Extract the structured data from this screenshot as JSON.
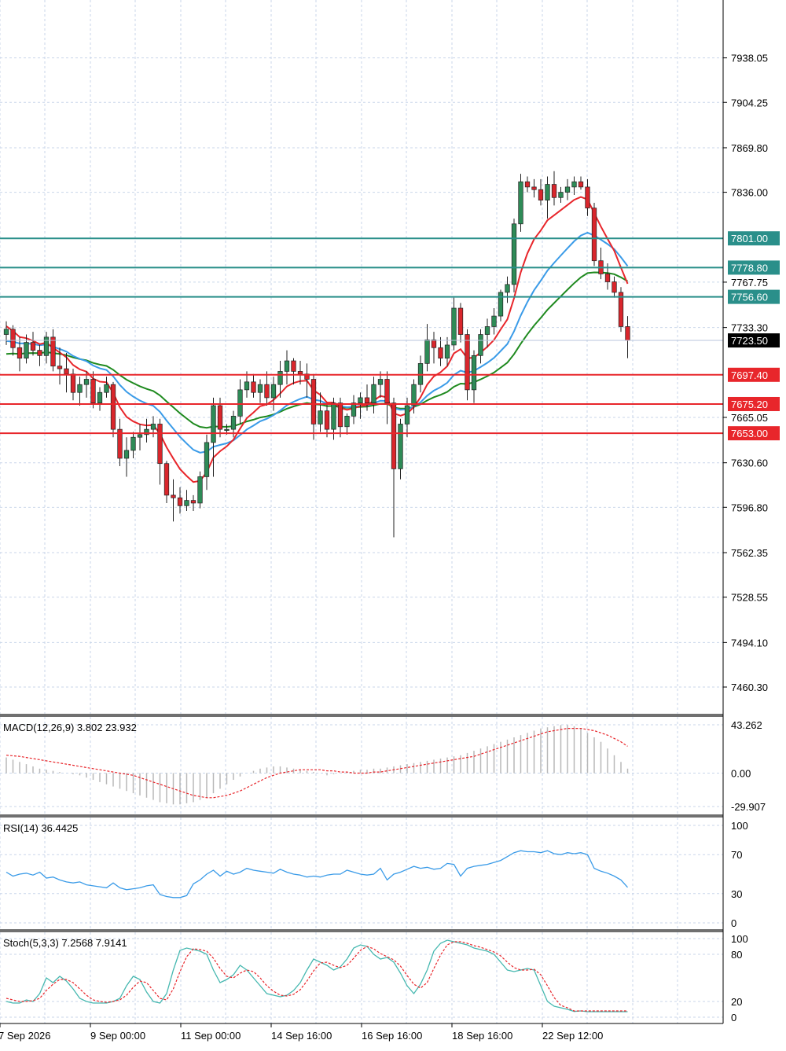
{
  "chart_data": [
    {
      "panel": "price",
      "type": "candlestick",
      "y_ticks": [
        "7938.05",
        "7904.25",
        "7869.80",
        "7836.00",
        "7767.75",
        "7733.30",
        "7665.05",
        "7630.60",
        "7596.80",
        "7562.35",
        "7528.55",
        "7494.10",
        "7460.30"
      ],
      "ylim": [
        7440,
        7982
      ],
      "current_price": {
        "label": "7723.50",
        "value": 7723.5
      },
      "resistance_levels": [
        {
          "label": "7801.00",
          "value": 7801.0
        },
        {
          "label": "7778.80",
          "value": 7778.8
        },
        {
          "label": "7756.60",
          "value": 7756.6
        }
      ],
      "support_levels": [
        {
          "label": "7697.40",
          "value": 7697.4
        },
        {
          "label": "7675.20",
          "value": 7675.2
        },
        {
          "label": "7653.00",
          "value": 7653.0
        }
      ],
      "moving_averages_colors": {
        "fast": "#e8262b",
        "mid": "#3a9be8",
        "slow": "#1f8a1f"
      },
      "x_tick_labels": [
        "7 Sep 2026",
        "9 Sep 00:00",
        "11 Sep 00:00",
        "14 Sep 16:00",
        "16 Sep 16:00",
        "18 Sep 16:00",
        "22 Sep 12:00"
      ],
      "candles": [
        [
          7728,
          7738,
          7720,
          7732
        ],
        [
          7732,
          7735,
          7712,
          7718
        ],
        [
          7718,
          7726,
          7700,
          7710
        ],
        [
          7710,
          7728,
          7706,
          7722
        ],
        [
          7722,
          7730,
          7712,
          7716
        ],
        [
          7716,
          7720,
          7704,
          7712
        ],
        [
          7712,
          7730,
          7706,
          7726
        ],
        [
          7726,
          7732,
          7700,
          7704
        ],
        [
          7704,
          7718,
          7690,
          7702
        ],
        [
          7702,
          7714,
          7684,
          7698
        ],
        [
          7698,
          7702,
          7678,
          7684
        ],
        [
          7684,
          7696,
          7674,
          7690
        ],
        [
          7690,
          7700,
          7680,
          7694
        ],
        [
          7694,
          7700,
          7672,
          7676
        ],
        [
          7676,
          7688,
          7670,
          7684
        ],
        [
          7684,
          7696,
          7680,
          7690
        ],
        [
          7690,
          7692,
          7650,
          7656
        ],
        [
          7656,
          7664,
          7628,
          7634
        ],
        [
          7634,
          7650,
          7620,
          7640
        ],
        [
          7640,
          7654,
          7634,
          7650
        ],
        [
          7650,
          7660,
          7640,
          7652
        ],
        [
          7652,
          7664,
          7646,
          7656
        ],
        [
          7656,
          7666,
          7650,
          7660
        ],
        [
          7660,
          7664,
          7614,
          7630
        ],
        [
          7630,
          7632,
          7600,
          7606
        ],
        [
          7606,
          7618,
          7586,
          7604
        ],
        [
          7604,
          7612,
          7592,
          7598
        ],
        [
          7598,
          7610,
          7594,
          7602
        ],
        [
          7602,
          7606,
          7594,
          7600
        ],
        [
          7600,
          7624,
          7596,
          7620
        ],
        [
          7620,
          7652,
          7610,
          7646
        ],
        [
          7646,
          7680,
          7620,
          7674
        ],
        [
          7674,
          7680,
          7650,
          7656
        ],
        [
          7656,
          7660,
          7652,
          7656
        ],
        [
          7656,
          7670,
          7650,
          7666
        ],
        [
          7666,
          7694,
          7660,
          7686
        ],
        [
          7686,
          7700,
          7680,
          7692
        ],
        [
          7692,
          7698,
          7680,
          7684
        ],
        [
          7684,
          7694,
          7676,
          7690
        ],
        [
          7690,
          7700,
          7674,
          7680
        ],
        [
          7680,
          7696,
          7670,
          7690
        ],
        [
          7690,
          7708,
          7680,
          7700
        ],
        [
          7700,
          7716,
          7690,
          7708
        ],
        [
          7708,
          7710,
          7690,
          7700
        ],
        [
          7700,
          7708,
          7690,
          7698
        ],
        [
          7698,
          7706,
          7680,
          7694
        ],
        [
          7694,
          7698,
          7648,
          7660
        ],
        [
          7660,
          7684,
          7654,
          7670
        ],
        [
          7670,
          7676,
          7650,
          7656
        ],
        [
          7656,
          7680,
          7648,
          7676
        ],
        [
          7676,
          7680,
          7650,
          7658
        ],
        [
          7658,
          7668,
          7652,
          7666
        ],
        [
          7666,
          7682,
          7660,
          7676
        ],
        [
          7676,
          7684,
          7664,
          7680
        ],
        [
          7680,
          7690,
          7670,
          7676
        ],
        [
          7676,
          7696,
          7668,
          7690
        ],
        [
          7690,
          7700,
          7680,
          7694
        ],
        [
          7694,
          7700,
          7660,
          7676
        ],
        [
          7676,
          7680,
          7574,
          7626
        ],
        [
          7626,
          7664,
          7618,
          7660
        ],
        [
          7660,
          7680,
          7650,
          7674
        ],
        [
          7674,
          7694,
          7668,
          7690
        ],
        [
          7690,
          7712,
          7684,
          7706
        ],
        [
          7706,
          7736,
          7700,
          7724
        ],
        [
          7724,
          7730,
          7706,
          7718
        ],
        [
          7718,
          7726,
          7704,
          7710
        ],
        [
          7710,
          7726,
          7704,
          7720
        ],
        [
          7720,
          7756,
          7716,
          7748
        ],
        [
          7748,
          7752,
          7722,
          7728
        ],
        [
          7728,
          7732,
          7678,
          7686
        ],
        [
          7686,
          7716,
          7676,
          7712
        ],
        [
          7712,
          7732,
          7706,
          7728
        ],
        [
          7728,
          7740,
          7718,
          7734
        ],
        [
          7734,
          7748,
          7728,
          7742
        ],
        [
          7742,
          7762,
          7738,
          7760
        ],
        [
          7760,
          7772,
          7752,
          7766
        ],
        [
          7766,
          7816,
          7760,
          7812
        ],
        [
          7812,
          7850,
          7806,
          7844
        ],
        [
          7844,
          7848,
          7836,
          7840
        ],
        [
          7840,
          7846,
          7832,
          7838
        ],
        [
          7838,
          7846,
          7826,
          7830
        ],
        [
          7830,
          7848,
          7816,
          7842
        ],
        [
          7842,
          7852,
          7826,
          7832
        ],
        [
          7832,
          7840,
          7828,
          7836
        ],
        [
          7836,
          7846,
          7830,
          7840
        ],
        [
          7840,
          7848,
          7834,
          7844
        ],
        [
          7844,
          7848,
          7838,
          7840
        ],
        [
          7840,
          7846,
          7818,
          7824
        ],
        [
          7824,
          7828,
          7780,
          7784
        ],
        [
          7784,
          7794,
          7770,
          7774
        ],
        [
          7774,
          7782,
          7762,
          7768
        ],
        [
          7768,
          7772,
          7756,
          7760
        ],
        [
          7760,
          7764,
          7730,
          7734
        ],
        [
          7734,
          7742,
          7710,
          7723.5
        ]
      ]
    },
    {
      "panel": "macd",
      "type": "bar",
      "title": "MACD(12,26,9) 3.802 23.932",
      "y_ticks": [
        "43.262",
        "0.00",
        "-29.907"
      ],
      "ylim": [
        -29.907,
        43.262
      ],
      "x": [
        0,
        1,
        2,
        3,
        4,
        5,
        6,
        7,
        8,
        9,
        10,
        11,
        12,
        13,
        14,
        15,
        16,
        17,
        18,
        19,
        20,
        21,
        22,
        23,
        24,
        25,
        26,
        27,
        28,
        29,
        30,
        31,
        32,
        33,
        34,
        35,
        36,
        37,
        38,
        39,
        40,
        41,
        42,
        43,
        44,
        45,
        46,
        47,
        48,
        49,
        50,
        51,
        52,
        53,
        54,
        55,
        56,
        57,
        58,
        59,
        60,
        61,
        62,
        63,
        64,
        65,
        66,
        67,
        68,
        69,
        70,
        71,
        72,
        73,
        74,
        75,
        76,
        77,
        78,
        79,
        80,
        81,
        82,
        83,
        84,
        85,
        86,
        87,
        88,
        89,
        90,
        91,
        92,
        93
      ],
      "histogram": [
        14,
        12,
        10,
        8,
        6,
        4,
        3,
        2,
        1,
        0,
        -1,
        -2,
        -4,
        -6,
        -8,
        -10,
        -12,
        -14,
        -16,
        -18,
        -20,
        -22,
        -24,
        -26,
        -27,
        -28,
        -28,
        -27,
        -26,
        -24,
        -22,
        -18,
        -14,
        -10,
        -6,
        -3,
        0,
        2,
        4,
        5,
        6,
        6,
        5,
        4,
        3,
        2,
        1,
        0,
        -2,
        -1,
        0,
        1,
        2,
        3,
        3,
        4,
        4,
        5,
        6,
        7,
        8,
        9,
        10,
        11,
        12,
        13,
        14,
        15,
        16,
        18,
        20,
        22,
        24,
        26,
        28,
        30,
        32,
        34,
        36,
        38,
        40,
        41,
        42,
        43,
        43,
        42,
        40,
        36,
        32,
        28,
        22,
        16,
        10,
        4
      ],
      "signal": [
        16,
        15.5,
        15,
        14,
        13,
        12,
        11,
        10,
        9,
        8,
        7,
        6,
        5,
        4,
        3,
        2,
        1,
        0,
        -1,
        -2,
        -4,
        -6,
        -8,
        -10,
        -12,
        -14,
        -16,
        -18,
        -20,
        -21,
        -22,
        -22,
        -21,
        -20,
        -18,
        -16,
        -13,
        -10,
        -7,
        -4,
        -2,
        0,
        1,
        2,
        3,
        3,
        3,
        3,
        2,
        2,
        1,
        1,
        0,
        0,
        0,
        1,
        1,
        2,
        3,
        4,
        5,
        6,
        7,
        8,
        9,
        10,
        11,
        12,
        13,
        14,
        15,
        17,
        19,
        21,
        23,
        25,
        27,
        29,
        31,
        33,
        35,
        37,
        38,
        39,
        40,
        40,
        40,
        39,
        38,
        36,
        34,
        31,
        28,
        24
      ]
    },
    {
      "panel": "rsi",
      "type": "line",
      "title": "RSI(14) 36.4425",
      "y_ticks": [
        "100",
        "70",
        "30",
        "0"
      ],
      "ylim": [
        0,
        100
      ],
      "x": [
        0,
        1,
        2,
        3,
        4,
        5,
        6,
        7,
        8,
        9,
        10,
        11,
        12,
        13,
        14,
        15,
        16,
        17,
        18,
        19,
        20,
        21,
        22,
        23,
        24,
        25,
        26,
        27,
        28,
        29,
        30,
        31,
        32,
        33,
        34,
        35,
        36,
        37,
        38,
        39,
        40,
        41,
        42,
        43,
        44,
        45,
        46,
        47,
        48,
        49,
        50,
        51,
        52,
        53,
        54,
        55,
        56,
        57,
        58,
        59,
        60,
        61,
        62,
        63,
        64,
        65,
        66,
        67,
        68,
        69,
        70,
        71,
        72,
        73,
        74,
        75,
        76,
        77,
        78,
        79,
        80,
        81,
        82,
        83,
        84,
        85,
        86,
        87,
        88,
        89,
        90,
        91,
        92,
        93
      ],
      "values": [
        52,
        48,
        50,
        51,
        49,
        52,
        46,
        47,
        44,
        42,
        41,
        42,
        39,
        38,
        37,
        36,
        41,
        36,
        34,
        35,
        36,
        38,
        39,
        29,
        27,
        26,
        26,
        28,
        40,
        44,
        50,
        54,
        48,
        53,
        50,
        52,
        56,
        54,
        53,
        52,
        51,
        55,
        52,
        50,
        49,
        47,
        48,
        47,
        49,
        50,
        50,
        54,
        52,
        50,
        49,
        50,
        56,
        44,
        50,
        52,
        55,
        58,
        56,
        57,
        55,
        56,
        61,
        60,
        48,
        56,
        58,
        59,
        60,
        62,
        64,
        68,
        72,
        74,
        73,
        73,
        72,
        74,
        71,
        70,
        72,
        71,
        72,
        70,
        56,
        53,
        51,
        48,
        44,
        36.4425
      ]
    },
    {
      "panel": "stoch",
      "type": "line",
      "title": "Stoch(5,3,3) 7.2568 7.9141",
      "y_ticks": [
        "100",
        "80",
        "20",
        "0"
      ],
      "ylim": [
        0,
        100
      ],
      "x": [
        0,
        1,
        2,
        3,
        4,
        5,
        6,
        7,
        8,
        9,
        10,
        11,
        12,
        13,
        14,
        15,
        16,
        17,
        18,
        19,
        20,
        21,
        22,
        23,
        24,
        25,
        26,
        27,
        28,
        29,
        30,
        31,
        32,
        33,
        34,
        35,
        36,
        37,
        38,
        39,
        40,
        41,
        42,
        43,
        44,
        45,
        46,
        47,
        48,
        49,
        50,
        51,
        52,
        53,
        54,
        55,
        56,
        57,
        58,
        59,
        60,
        61,
        62,
        63,
        64,
        65,
        66,
        67,
        68,
        69,
        70,
        71,
        72,
        73,
        74,
        75,
        76,
        77,
        78,
        79,
        80,
        81,
        82,
        83,
        84,
        85,
        86,
        87,
        88,
        89,
        90,
        91,
        92,
        93
      ],
      "main": [
        20,
        18,
        18,
        22,
        20,
        30,
        50,
        44,
        52,
        46,
        36,
        24,
        20,
        18,
        18,
        18,
        20,
        24,
        40,
        52,
        48,
        32,
        20,
        18,
        30,
        60,
        85,
        88,
        86,
        84,
        80,
        60,
        44,
        48,
        54,
        66,
        60,
        50,
        40,
        30,
        28,
        26,
        28,
        34,
        44,
        60,
        74,
        70,
        66,
        60,
        64,
        74,
        88,
        92,
        90,
        80,
        74,
        76,
        70,
        56,
        40,
        30,
        42,
        60,
        84,
        94,
        98,
        96,
        94,
        92,
        88,
        86,
        84,
        80,
        70,
        60,
        58,
        60,
        62,
        60,
        40,
        20,
        14,
        12,
        10,
        7.2568,
        8,
        7,
        7,
        7,
        7,
        7,
        7,
        7
      ],
      "signal": [
        24,
        22,
        20,
        20,
        21,
        24,
        34,
        42,
        48,
        48,
        44,
        36,
        28,
        22,
        20,
        19,
        20,
        22,
        28,
        38,
        46,
        44,
        34,
        24,
        22,
        36,
        58,
        77,
        87,
        86,
        84,
        75,
        62,
        52,
        50,
        56,
        60,
        58,
        50,
        40,
        33,
        28,
        27,
        29,
        35,
        46,
        59,
        69,
        70,
        66,
        63,
        66,
        75,
        85,
        90,
        87,
        81,
        77,
        73,
        65,
        53,
        42,
        37,
        44,
        62,
        79,
        92,
        96,
        96,
        94,
        91,
        89,
        86,
        83,
        78,
        70,
        63,
        60,
        60,
        61,
        54,
        40,
        25,
        15,
        12,
        7.9141,
        8,
        8,
        8,
        8,
        8,
        8,
        8,
        8
      ]
    }
  ]
}
